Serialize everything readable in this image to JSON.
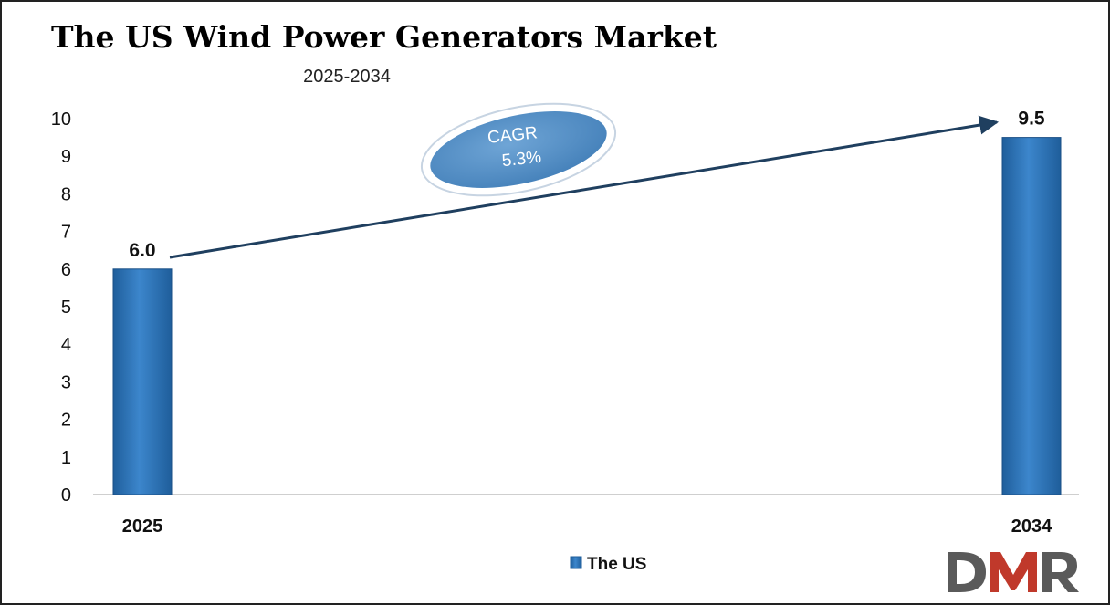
{
  "chart_data": {
    "type": "bar",
    "title": "The US Wind Power Generators Market",
    "subtitle": "2025-2034",
    "categories": [
      "2025",
      "2034"
    ],
    "series": [
      {
        "name": "The US",
        "values": [
          6.0,
          9.5
        ]
      }
    ],
    "data_labels": [
      "6.0",
      "9.5"
    ],
    "ylim": [
      0,
      10
    ],
    "y_ticks": [
      "0",
      "1",
      "2",
      "3",
      "4",
      "5",
      "6",
      "7",
      "8",
      "9",
      "10"
    ],
    "xlabel": "",
    "ylabel": "",
    "grid": false,
    "legend_position": "bottom-center",
    "bar_color": "#2E75B6",
    "annotation": {
      "line1": "CAGR",
      "line2": "5.3%"
    },
    "arrow_color": "#1F3F5F"
  },
  "logo": {
    "text": "DMR",
    "colors": [
      "#5A5A5A",
      "#C0392B"
    ]
  }
}
